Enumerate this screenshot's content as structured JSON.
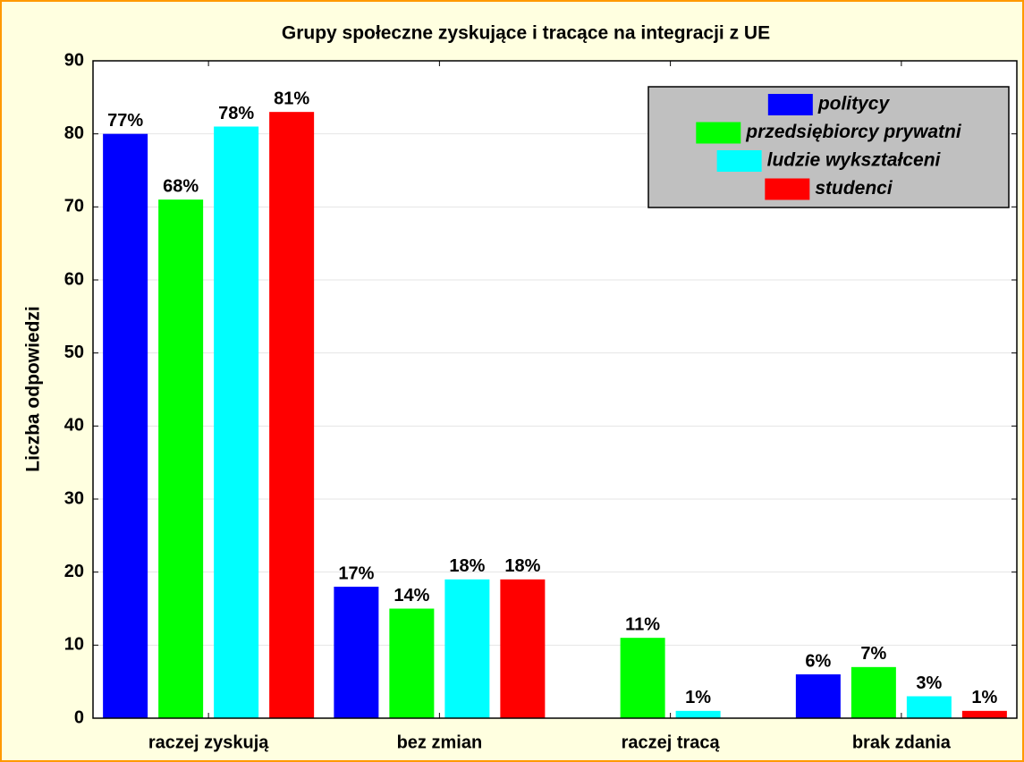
{
  "chart_data": {
    "type": "bar",
    "title": "Grupy społeczne zyskujące i tracące na integracji z UE",
    "y_label": "Liczba odpowiedzi",
    "categories": [
      "raczej zyskują",
      "bez zmian",
      "raczej tracą",
      "brak zdania"
    ],
    "series": [
      {
        "name": "politycy",
        "color": "#0000ff",
        "values": [
          80,
          18,
          null,
          6
        ],
        "percent_labels": [
          "77%",
          "17%",
          null,
          "6%"
        ]
      },
      {
        "name": "przedsiębiorcy prywatni",
        "color": "#00ff00",
        "values": [
          71,
          15,
          11,
          7
        ],
        "percent_labels": [
          "68%",
          "14%",
          "11%",
          "7%"
        ]
      },
      {
        "name": "ludzie wykształceni",
        "color": "#00ffff",
        "values": [
          81,
          19,
          1,
          3
        ],
        "percent_labels": [
          "78%",
          "18%",
          "1%",
          "3%"
        ]
      },
      {
        "name": "studenci",
        "color": "#ff0000",
        "values": [
          83,
          19,
          null,
          1
        ],
        "percent_labels": [
          "81%",
          "18%",
          null,
          "1%"
        ]
      }
    ],
    "ylim": [
      0,
      90
    ],
    "yticks": [
      0,
      10,
      20,
      30,
      40,
      50,
      60,
      70,
      80,
      90
    ],
    "grid": true,
    "legend": "upper right"
  }
}
